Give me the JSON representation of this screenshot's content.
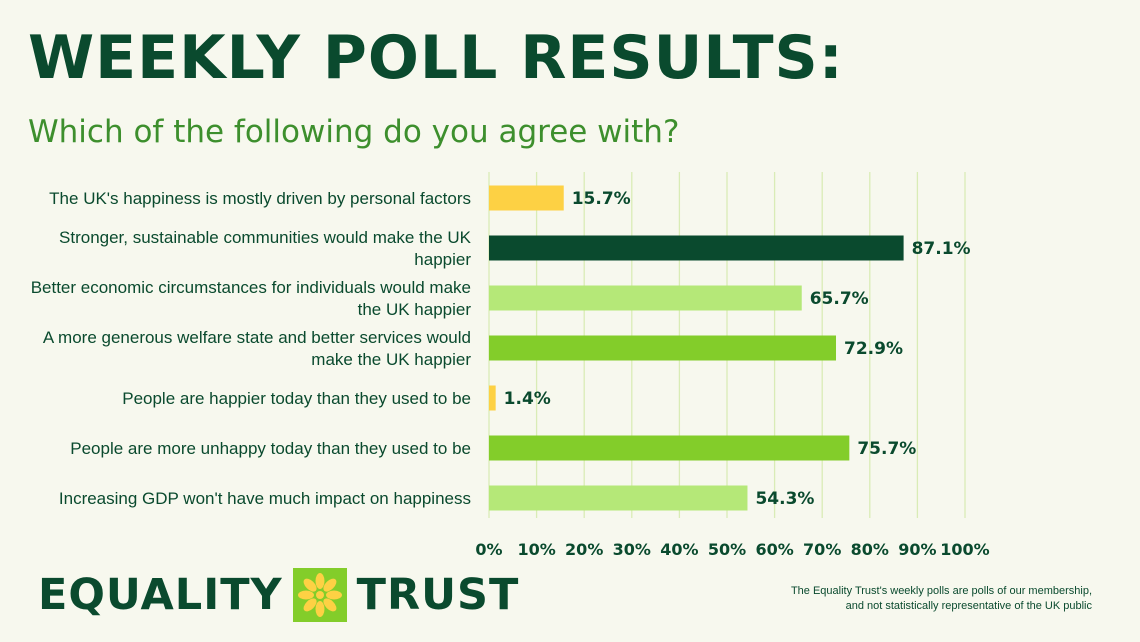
{
  "header": {
    "title": "WEEKLY POLL RESULTS:",
    "subtitle": "Which of the following do you agree with?"
  },
  "chart_data": {
    "type": "bar",
    "orientation": "horizontal",
    "title": "WEEKLY POLL RESULTS:",
    "subtitle": "Which of the following do you agree with?",
    "categories": [
      "The UK's happiness is mostly driven by personal factors",
      "Stronger, sustainable communities would make the UK happier",
      "Better economic circumstances for individuals would make the UK happier",
      "A more generous welfare state and better services would make the UK happier",
      "People are happier today than they used to be",
      "People are more unhappy today than they used to be",
      "Increasing GDP won't have much impact on happiness"
    ],
    "category_lines": [
      [
        "The UK's happiness is mostly driven by personal factors"
      ],
      [
        "Stronger, sustainable communities would make the UK",
        "happier"
      ],
      [
        "Better economic circumstances for individuals would make",
        "the UK happier"
      ],
      [
        "A more generous welfare state and better services would",
        "make the UK happier"
      ],
      [
        "People are happier today than they used to be"
      ],
      [
        "People are more unhappy today than they used to be"
      ],
      [
        "Increasing GDP won't have much impact on happiness"
      ]
    ],
    "values": [
      15.7,
      87.1,
      65.7,
      72.9,
      1.4,
      75.7,
      54.3
    ],
    "value_labels": [
      "15.7%",
      "87.1%",
      "65.7%",
      "72.9%",
      "1.4%",
      "75.7%",
      "54.3%"
    ],
    "bar_colors": [
      "#fdd144",
      "#0a4a2e",
      "#b5e878",
      "#83cd2a",
      "#fdd144",
      "#83cd2a",
      "#b5e878"
    ],
    "xlim": [
      0,
      100
    ],
    "xticks": [
      "0%",
      "10%",
      "20%",
      "30%",
      "40%",
      "50%",
      "60%",
      "70%",
      "80%",
      "90%",
      "100%"
    ],
    "grid": true
  },
  "colors": {
    "background": "#f7f8ee",
    "dark_green": "#0a4a2e",
    "medium_green": "#83cd2a",
    "light_green": "#b5e878",
    "yellow": "#fdd144",
    "subtitle_green": "#3d8f2d",
    "gridline": "#d9ecb6"
  },
  "logo": {
    "word1": "EQUALITY",
    "word2": "TRUST",
    "icon": "asterisk-flower-icon"
  },
  "footnote": {
    "line1": "The Equality Trust's weekly polls are polls of our membership,",
    "line2": "and not statistically representative of the UK public"
  }
}
